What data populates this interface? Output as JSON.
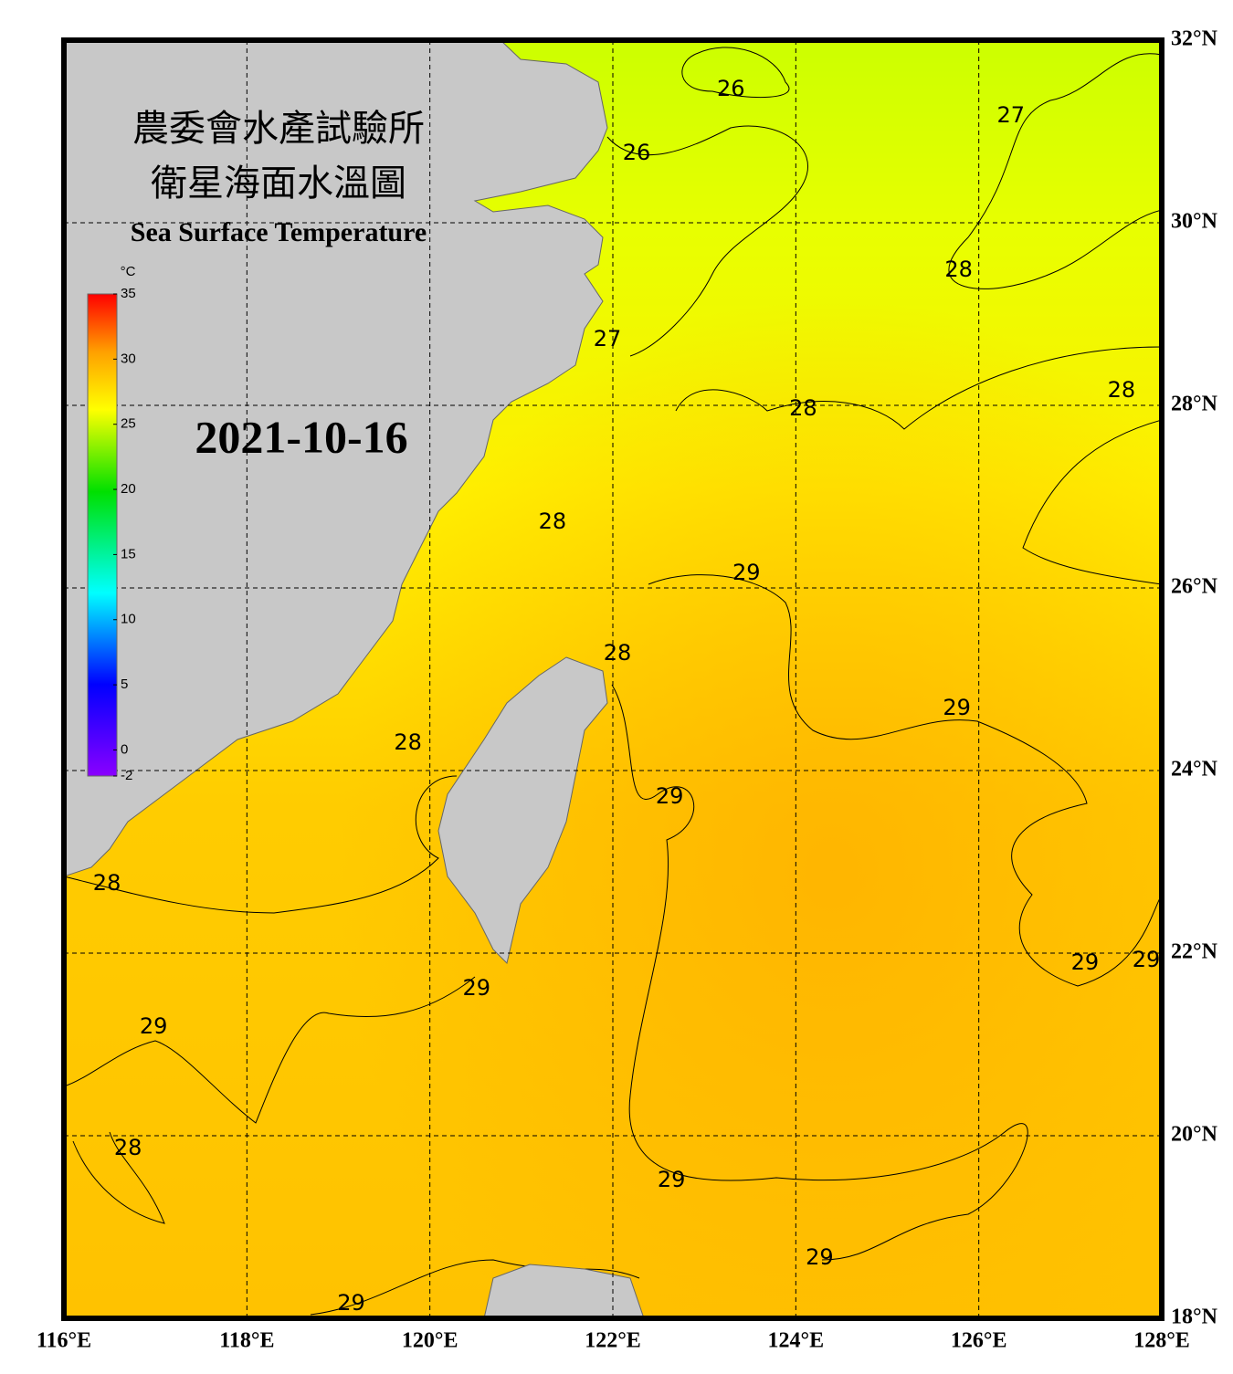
{
  "title_zh": "農委會水產試驗所",
  "subtitle_zh": "衛星海面水溫圖",
  "title_en": "Sea Surface Temperature",
  "date": "2021-10-16",
  "colorbar": {
    "unit": "°C",
    "range": [
      -2,
      35
    ],
    "ticks": [
      35,
      30,
      25,
      20,
      15,
      10,
      5,
      0,
      -2
    ]
  },
  "map": {
    "lon_range": [
      116,
      128
    ],
    "lat_range": [
      18,
      32
    ],
    "lon_ticks": [
      {
        "value": 116,
        "label": "116°E"
      },
      {
        "value": 118,
        "label": "118°E"
      },
      {
        "value": 120,
        "label": "120°E"
      },
      {
        "value": 122,
        "label": "122°E"
      },
      {
        "value": 124,
        "label": "124°E"
      },
      {
        "value": 126,
        "label": "126°E"
      },
      {
        "value": 128,
        "label": "128°E"
      }
    ],
    "lat_ticks": [
      {
        "value": 18,
        "label": "18°N"
      },
      {
        "value": 20,
        "label": "20°N"
      },
      {
        "value": 22,
        "label": "22°N"
      },
      {
        "value": 24,
        "label": "24°N"
      },
      {
        "value": 26,
        "label": "26°N"
      },
      {
        "value": 28,
        "label": "28°N"
      },
      {
        "value": 30,
        "label": "30°N"
      },
      {
        "value": 32,
        "label": "32°N"
      }
    ],
    "contour_labels": [
      {
        "value": 26,
        "lon": 123.29,
        "lat": 31.46
      },
      {
        "value": 26,
        "lon": 122.26,
        "lat": 30.76
      },
      {
        "value": 27,
        "lon": 126.35,
        "lat": 31.17
      },
      {
        "value": 28,
        "lon": 125.78,
        "lat": 29.48
      },
      {
        "value": 27,
        "lon": 121.94,
        "lat": 28.72
      },
      {
        "value": 28,
        "lon": 124.08,
        "lat": 27.96
      },
      {
        "value": 28,
        "lon": 127.56,
        "lat": 28.16
      },
      {
        "value": 28,
        "lon": 121.34,
        "lat": 26.72
      },
      {
        "value": 29,
        "lon": 123.46,
        "lat": 26.16
      },
      {
        "value": 28,
        "lon": 122.05,
        "lat": 25.28
      },
      {
        "value": 29,
        "lon": 125.76,
        "lat": 24.68
      },
      {
        "value": 28,
        "lon": 119.76,
        "lat": 24.3
      },
      {
        "value": 29,
        "lon": 122.62,
        "lat": 23.71
      },
      {
        "value": 28,
        "lon": 116.47,
        "lat": 22.76
      },
      {
        "value": 29,
        "lon": 127.16,
        "lat": 21.89
      },
      {
        "value": 29,
        "lon": 127.83,
        "lat": 21.92
      },
      {
        "value": 29,
        "lon": 120.51,
        "lat": 21.61
      },
      {
        "value": 29,
        "lon": 116.98,
        "lat": 21.19
      },
      {
        "value": 28,
        "lon": 116.7,
        "lat": 19.86
      },
      {
        "value": 29,
        "lon": 122.64,
        "lat": 19.51
      },
      {
        "value": 29,
        "lon": 124.26,
        "lat": 18.66
      },
      {
        "value": 29,
        "lon": 119.14,
        "lat": 18.16
      }
    ]
  }
}
